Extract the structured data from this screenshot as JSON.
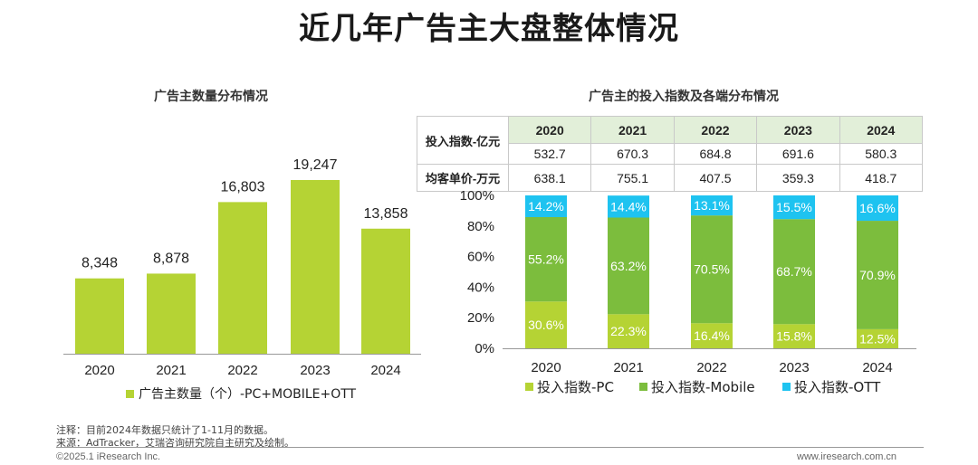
{
  "title": "近几年广告主大盘整体情况",
  "left_subtitle": "广告主数量分布情况",
  "right_subtitle": "广告主的投入指数及各端分布情况",
  "table": {
    "row1_label": "投入指数-亿元",
    "row2_label": "均客单价-万元",
    "years": [
      "2020",
      "2021",
      "2022",
      "2023",
      "2024"
    ],
    "row1": [
      "532.7",
      "670.3",
      "684.8",
      "691.6",
      "580.3"
    ],
    "row2": [
      "638.1",
      "755.1",
      "407.5",
      "359.3",
      "418.7"
    ]
  },
  "notes": {
    "note1": "注释：目前2024年数据只统计了1-11月的数据。",
    "note2": "来源：AdTracker，艾瑞咨询研究院自主研究及绘制。"
  },
  "footer": {
    "left": "©2025.1 iResearch Inc.",
    "right": "www.iresearch.com.cn"
  },
  "colors": {
    "bar": "#b5d334",
    "pc": "#b5d334",
    "mobile": "#7cbd3d",
    "ott": "#1ec3f0"
  },
  "chart_data": [
    {
      "type": "bar",
      "title": "广告主数量分布情况",
      "categories": [
        "2020",
        "2021",
        "2022",
        "2023",
        "2024"
      ],
      "values": [
        8348,
        8878,
        16803,
        19247,
        13858
      ],
      "value_labels": [
        "8,348",
        "8,878",
        "16,803",
        "19,247",
        "13,858"
      ],
      "series": [
        {
          "name": "广告主数量（个）-PC+MOBILE+OTT",
          "values": [
            8348,
            8878,
            16803,
            19247,
            13858
          ]
        }
      ],
      "ylim": [
        0,
        22000
      ],
      "legend": "bottom"
    },
    {
      "type": "bar",
      "stacked": true,
      "title": "广告主的投入指数及各端分布情况",
      "categories": [
        "2020",
        "2021",
        "2022",
        "2023",
        "2024"
      ],
      "series": [
        {
          "name": "投入指数-PC",
          "values": [
            30.6,
            22.3,
            16.4,
            15.8,
            12.5
          ]
        },
        {
          "name": "投入指数-Mobile",
          "values": [
            55.2,
            63.2,
            70.5,
            68.7,
            70.9
          ]
        },
        {
          "name": "投入指数-OTT",
          "values": [
            14.2,
            14.4,
            13.1,
            15.5,
            16.6
          ]
        }
      ],
      "yticks": [
        "0%",
        "20%",
        "40%",
        "60%",
        "80%",
        "100%"
      ],
      "ylim": [
        0,
        100
      ],
      "legend": "bottom"
    }
  ]
}
